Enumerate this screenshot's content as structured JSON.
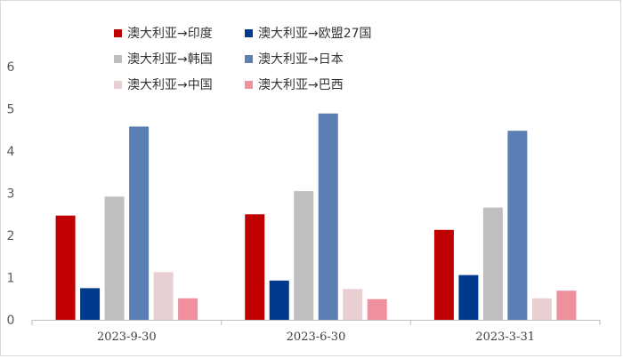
{
  "chart_data": {
    "type": "bar",
    "categories": [
      "2023-9-30",
      "2023-6-30",
      "2023-3-31"
    ],
    "series": [
      {
        "name": "澳大利亚→印度",
        "color": "#C00000",
        "values": [
          2.47,
          2.5,
          2.13
        ]
      },
      {
        "name": "澳大利亚→欧盟27国",
        "color": "#003A8C",
        "values": [
          0.75,
          0.93,
          1.06
        ]
      },
      {
        "name": "澳大利亚→韩国",
        "color": "#BFBFBF",
        "values": [
          2.92,
          3.05,
          2.66
        ]
      },
      {
        "name": "澳大利亚→日本",
        "color": "#5B7FB5",
        "values": [
          4.58,
          4.89,
          4.48
        ]
      },
      {
        "name": "澳大利亚→中国",
        "color": "#E8D0D2",
        "values": [
          1.13,
          0.73,
          0.51
        ]
      },
      {
        "name": "澳大利亚→巴西",
        "color": "#F0909E",
        "values": [
          0.51,
          0.49,
          0.69
        ]
      }
    ],
    "ylim": [
      0,
      6
    ],
    "yticks": [
      "0",
      "1",
      "2",
      "3",
      "4",
      "5",
      "6"
    ],
    "grid": false,
    "legend_position": "top"
  }
}
